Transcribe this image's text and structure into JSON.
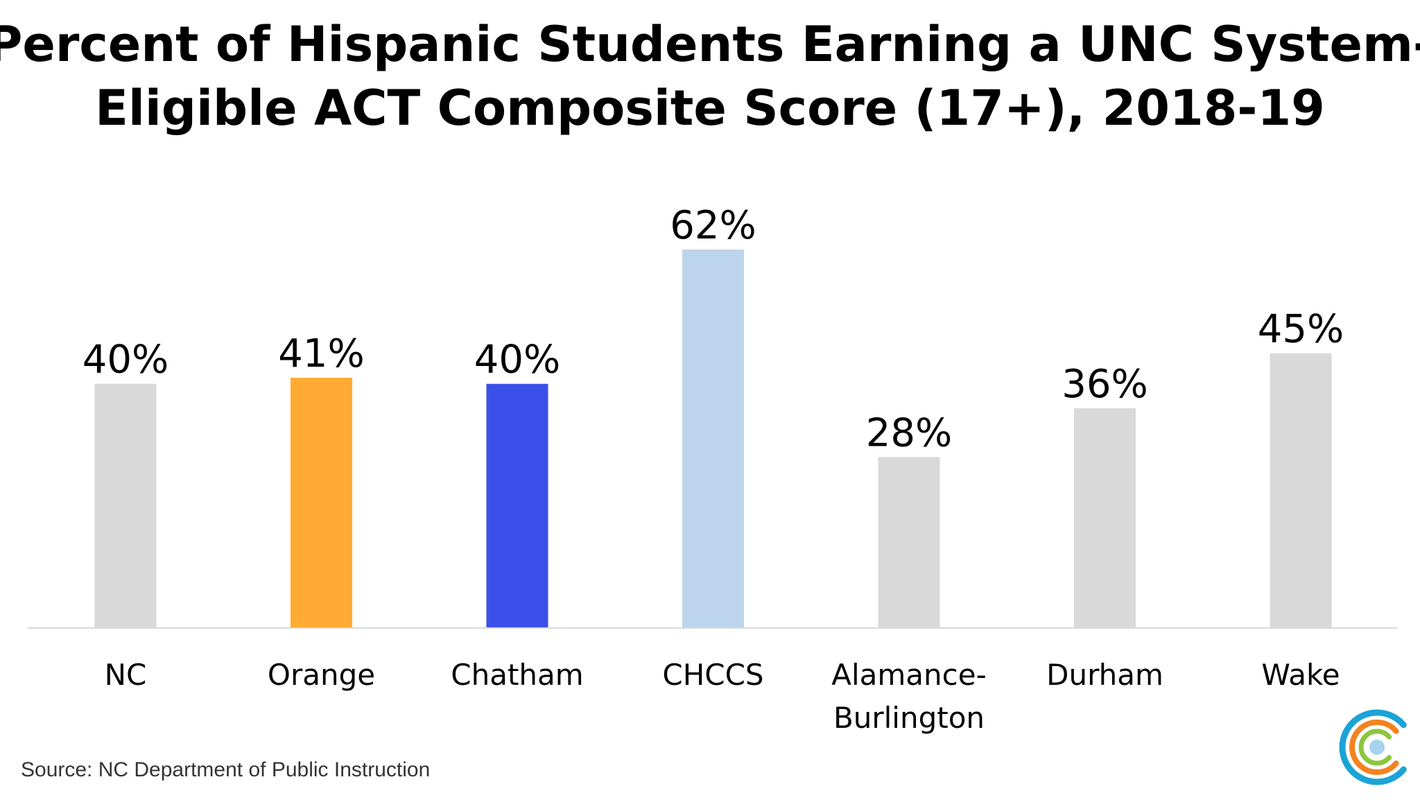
{
  "chart_data": {
    "type": "bar",
    "title_lines": [
      "Percent of Hispanic Students Earning a UNC System-",
      "Eligible ACT Composite Score (17+), 2018-19"
    ],
    "categories": [
      [
        "NC"
      ],
      [
        "Orange"
      ],
      [
        "Chatham"
      ],
      [
        "CHCCS"
      ],
      [
        "Alamance-",
        "Burlington"
      ],
      [
        "Durham"
      ],
      [
        "Wake"
      ]
    ],
    "values": [
      40,
      41,
      40,
      62,
      28,
      36,
      45
    ],
    "value_labels": [
      "40%",
      "41%",
      "40%",
      "62%",
      "28%",
      "36%",
      "45%"
    ],
    "colors": [
      "#d9d9d9",
      "#ffab33",
      "#3b50e8",
      "#bdd5ec",
      "#d9d9d9",
      "#d9d9d9",
      "#d9d9d9"
    ],
    "ylim": [
      0,
      62
    ],
    "grid": false,
    "legend": "none",
    "xlabel": "",
    "ylabel": ""
  },
  "source_note": "Source: NC Department of Public Instruction",
  "logo": {
    "icon": "concentric-circles-logo",
    "colors": [
      "#1ba3d6",
      "#f58220",
      "#8cc63f",
      "#a6d3ea"
    ]
  }
}
